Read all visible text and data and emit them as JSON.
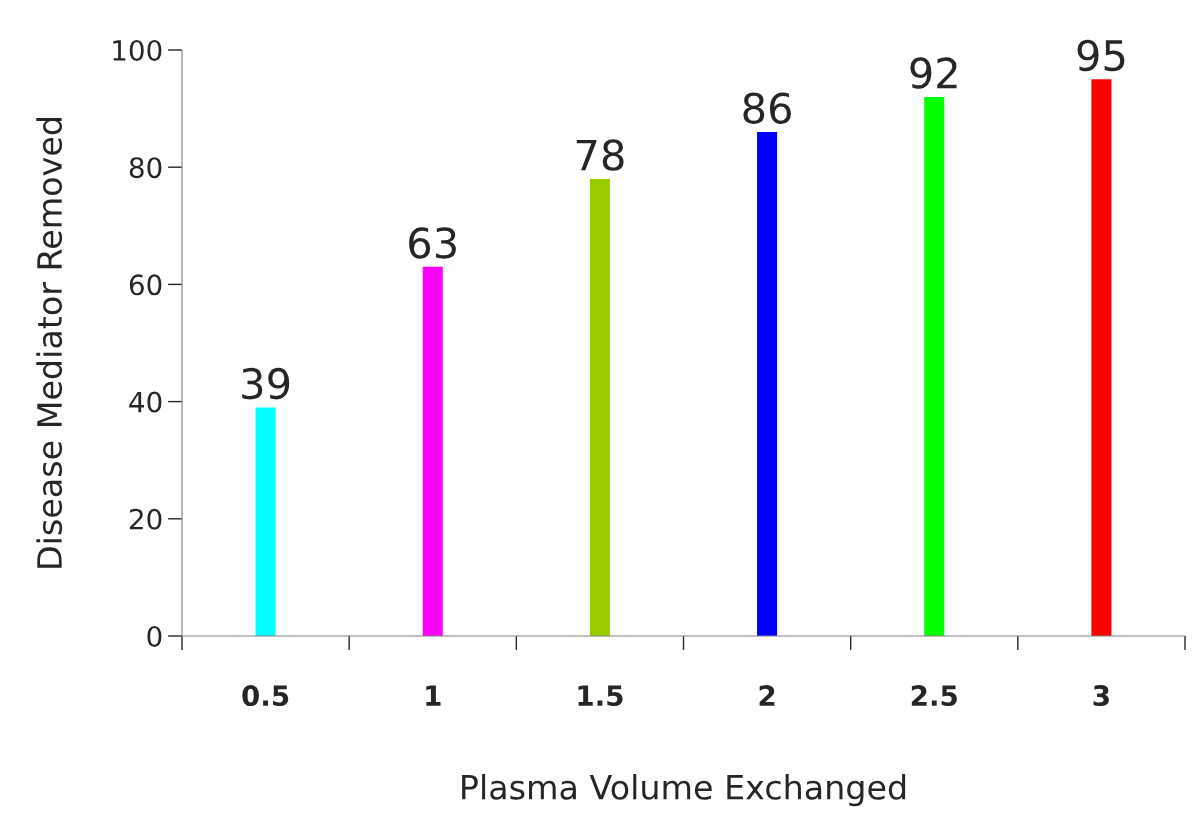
{
  "chart_data": {
    "type": "bar",
    "xlabel": "Plasma Volume Exchanged",
    "ylabel": "Disease Mediator Removed",
    "categories": [
      "0.5",
      "1",
      "1.5",
      "2",
      "2.5",
      "3"
    ],
    "values": [
      39,
      63,
      78,
      86,
      92,
      95
    ],
    "colors": [
      "#00ffff",
      "#ff00ff",
      "#99cc00",
      "#0000ff",
      "#00ff00",
      "#ff0000"
    ],
    "ylim": [
      0,
      100
    ],
    "yticks": [
      0,
      20,
      40,
      60,
      80,
      100
    ],
    "grid": false,
    "legend": false,
    "data_labels": true
  }
}
